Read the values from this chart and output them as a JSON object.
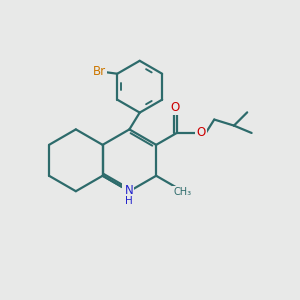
{
  "background_color": "#e8e9e8",
  "bond_color": "#2d6b6b",
  "bond_width": 1.6,
  "atom_colors": {
    "O": "#cc0000",
    "N": "#2222cc",
    "Br": "#cc7700",
    "C": "#2d6b6b",
    "H": "#2222cc"
  },
  "font_size_atom": 8.5,
  "font_size_small": 7.0,
  "xlim": [
    0,
    10
  ],
  "ylim": [
    0,
    10
  ]
}
